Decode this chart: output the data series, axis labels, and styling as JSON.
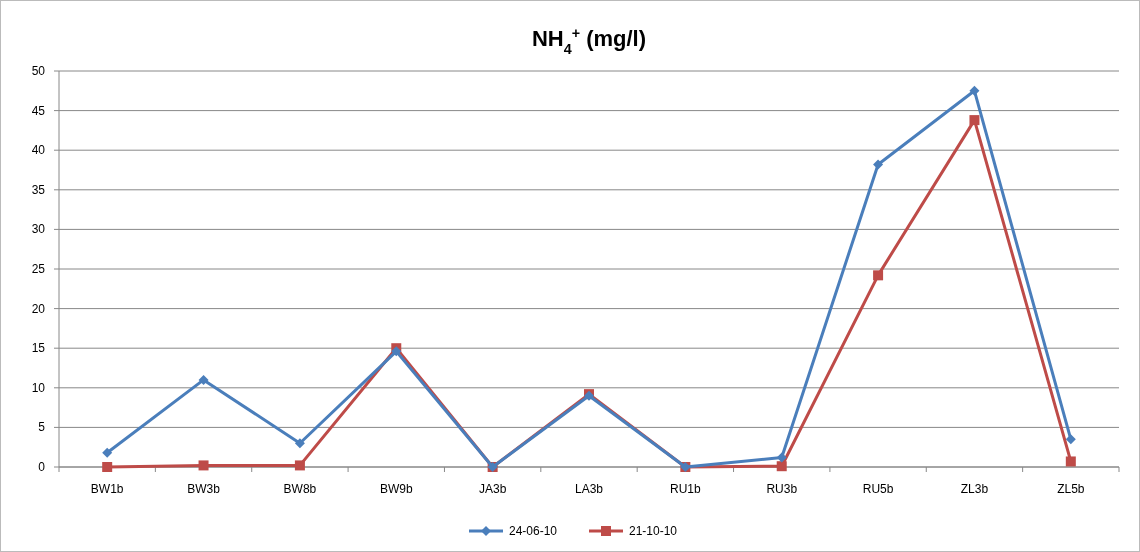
{
  "chart_data": {
    "type": "line",
    "title": "NH$_{4}$$^{+}$ (mg/l)",
    "categories": [
      "BW1b",
      "BW3b",
      "BW8b",
      "BW9b",
      "JA3b",
      "LA3b",
      "RU1b",
      "RU3b",
      "RU5b",
      "ZL3b",
      "ZL5b"
    ],
    "ylim": [
      0,
      50
    ],
    "yticks": [
      0,
      5,
      10,
      15,
      20,
      25,
      30,
      35,
      40,
      45,
      50
    ],
    "grid": "y",
    "legend": "bottom",
    "series": [
      {
        "name": "24-06-10",
        "color": "#4a7ebb",
        "marker": "diamond",
        "values": [
          1.8,
          11,
          3,
          14.6,
          0,
          9,
          0,
          1.2,
          38.2,
          47.5,
          3.5
        ]
      },
      {
        "name": "21-10-10",
        "color": "#be4b48",
        "marker": "square",
        "values": [
          0,
          0.2,
          0.2,
          15,
          0,
          9.2,
          0,
          0.1,
          24.2,
          43.8,
          0.7
        ]
      }
    ]
  }
}
